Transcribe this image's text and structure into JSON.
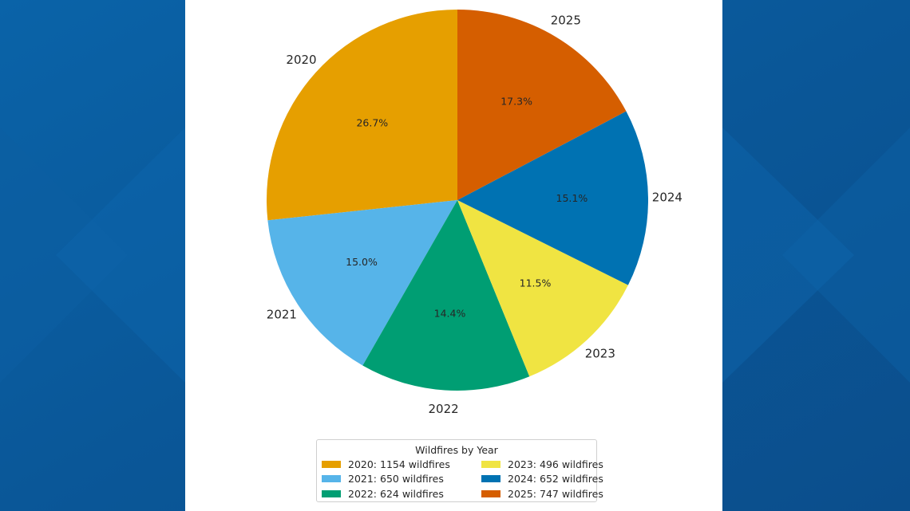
{
  "chart_data": {
    "type": "pie",
    "slices": [
      {
        "label": "2020",
        "value": 1154,
        "pct_label": "26.7%",
        "color": "#E69F00"
      },
      {
        "label": "2021",
        "value": 650,
        "pct_label": "15.0%",
        "color": "#56B4E9"
      },
      {
        "label": "2022",
        "value": 624,
        "pct_label": "14.4%",
        "color": "#009E73"
      },
      {
        "label": "2023",
        "value": 496,
        "pct_label": "11.5%",
        "color": "#F0E442"
      },
      {
        "label": "2024",
        "value": 652,
        "pct_label": "15.1%",
        "color": "#0072B2"
      },
      {
        "label": "2025",
        "value": 747,
        "pct_label": "17.3%",
        "color": "#D55E00"
      }
    ],
    "legend": {
      "title": "Wildfires by Year",
      "placement": "bottom-center",
      "entries": [
        "2020: 1154 wildfires",
        "2021: 650 wildfires",
        "2022: 624 wildfires",
        "2023: 496 wildfires",
        "2024: 652 wildfires",
        "2025: 747 wildfires"
      ]
    }
  },
  "background": {
    "outer": "#0A5A9E",
    "panel": "#FFFFFF"
  }
}
